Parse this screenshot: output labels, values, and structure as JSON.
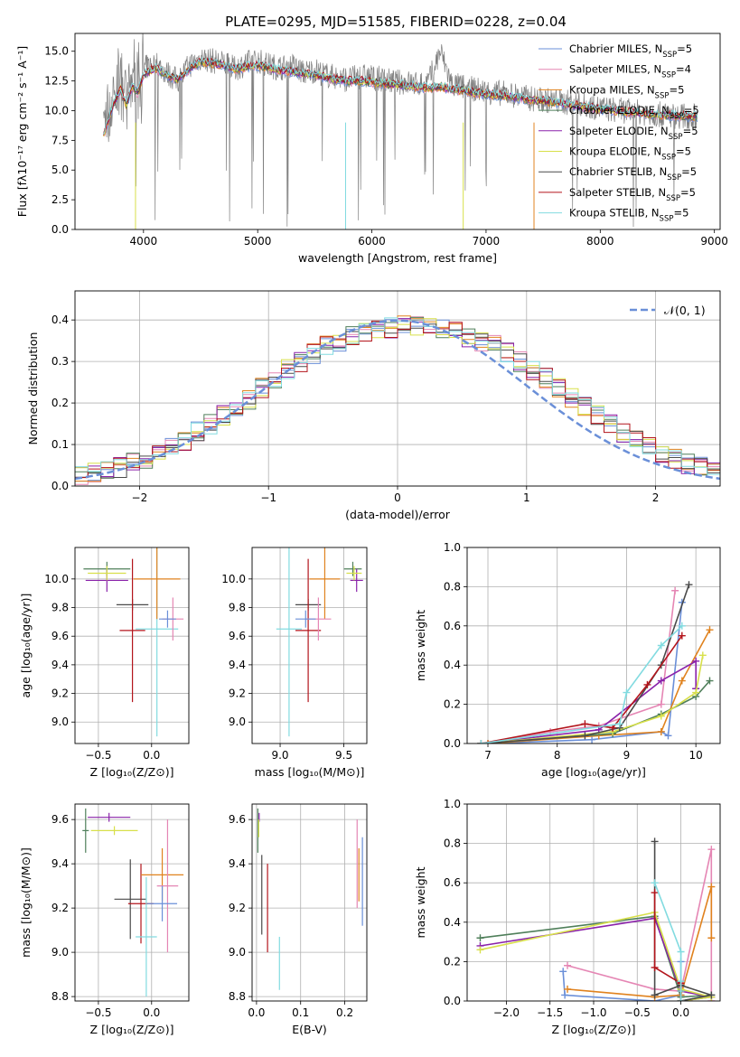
{
  "figure_title": "PLATE=0295, MJD=51585, FIBERID=0228, z=0.04",
  "palette": [
    "#6a8fd8",
    "#e586b4",
    "#e0821e",
    "#4f7f5a",
    "#8a22aa",
    "#d8e04a",
    "#4a4a4a",
    "#b3141b",
    "#82dbe0"
  ],
  "chart_data": [
    {
      "id": "spectrum",
      "type": "line",
      "title": "PLATE=0295, MJD=51585, FIBERID=0228, z=0.04",
      "xlabel": "wavelength [Angstrom, rest frame]",
      "ylabel": "Flux [fλ10⁻¹⁷ erg cm⁻² s⁻¹ A⁻¹]",
      "xlim": [
        3400,
        9050
      ],
      "ylim": [
        0,
        16.5
      ],
      "xticks": [
        4000,
        5000,
        6000,
        7000,
        8000,
        9000
      ],
      "yticks": [
        0.0,
        2.5,
        5.0,
        7.5,
        10.0,
        12.5,
        15.0
      ],
      "grid": false,
      "legend_position": "top-right",
      "observed_color": "#808080",
      "observed_x": [
        3650,
        3700,
        3750,
        3800,
        3850,
        3900,
        3950,
        4000,
        4100,
        4200,
        4300,
        4400,
        4500,
        4600,
        4700,
        4800,
        4900,
        5000,
        5100,
        5200,
        5300,
        5400,
        5500,
        5600,
        5700,
        5800,
        5900,
        6000,
        6100,
        6200,
        6300,
        6400,
        6500,
        6600,
        6700,
        6800,
        6900,
        7000,
        7200,
        7400,
        7600,
        7800,
        8000,
        8200,
        8400,
        8600,
        8800
      ],
      "observed_y": [
        8.5,
        10.0,
        11.5,
        12.5,
        10.0,
        13.0,
        12.0,
        13.5,
        14.0,
        13.2,
        12.5,
        13.8,
        14.4,
        14.2,
        14.0,
        13.5,
        14.0,
        14.2,
        13.8,
        13.6,
        13.8,
        13.2,
        13.4,
        13.0,
        12.8,
        12.6,
        12.9,
        12.8,
        12.6,
        12.4,
        12.4,
        12.2,
        12.5,
        15.0,
        12.2,
        12.0,
        11.8,
        11.6,
        11.4,
        11.0,
        10.8,
        10.6,
        10.2,
        10.0,
        9.8,
        9.6,
        9.5
      ],
      "model_x": [
        3650,
        3700,
        3750,
        3800,
        3850,
        3900,
        3950,
        4000,
        4100,
        4200,
        4300,
        4400,
        4500,
        4600,
        4700,
        4800,
        4900,
        5000,
        5100,
        5200,
        5300,
        5400,
        5500,
        5600,
        5700,
        5800,
        5900,
        6000,
        6100,
        6200,
        6300,
        6400,
        6500,
        6600,
        6700,
        6800,
        6900,
        7000,
        7200,
        7400,
        7600,
        7800,
        8000,
        8200,
        8400,
        8600,
        8800
      ],
      "model_y": [
        8.0,
        9.5,
        10.8,
        11.8,
        10.5,
        12.0,
        11.5,
        13.0,
        13.6,
        13.0,
        12.6,
        13.5,
        14.1,
        14.0,
        13.8,
        13.5,
        13.7,
        13.8,
        13.6,
        13.4,
        13.3,
        13.1,
        13.0,
        12.8,
        12.6,
        12.5,
        12.5,
        12.4,
        12.3,
        12.2,
        12.1,
        12.0,
        11.9,
        12.0,
        11.8,
        11.7,
        11.5,
        11.4,
        11.2,
        10.9,
        10.7,
        10.4,
        10.1,
        9.9,
        9.7,
        9.6,
        9.5
      ],
      "series": [
        {
          "name": "Chabrier MILES, N_SSP=5",
          "label_main": "Chabrier MILES, N",
          "label_sub": "SSP",
          "label_tail": "=5"
        },
        {
          "name": "Salpeter MILES, N_SSP=4",
          "label_main": "Salpeter MILES, N",
          "label_sub": "SSP",
          "label_tail": "=4"
        },
        {
          "name": "Kroupa MILES, N_SSP=5",
          "label_main": "Kroupa MILES, N",
          "label_sub": "SSP",
          "label_tail": "=5"
        },
        {
          "name": "Chabrier ELODIE, N_SSP=5",
          "label_main": "Chabrier ELODIE, N",
          "label_sub": "SSP",
          "label_tail": "=5"
        },
        {
          "name": "Salpeter ELODIE, N_SSP=5",
          "label_main": "Salpeter ELODIE, N",
          "label_sub": "SSP",
          "label_tail": "=5"
        },
        {
          "name": "Kroupa ELODIE, N_SSP=5",
          "label_main": "Kroupa ELODIE, N",
          "label_sub": "SSP",
          "label_tail": "=5"
        },
        {
          "name": "Chabrier STELIB, N_SSP=5",
          "label_main": "Chabrier STELIB, N",
          "label_sub": "SSP",
          "label_tail": "=5"
        },
        {
          "name": "Salpeter STELIB, N_SSP=5",
          "label_main": "Salpeter STELIB, N",
          "label_sub": "SSP",
          "label_tail": "=5"
        },
        {
          "name": "Kroupa STELIB, N_SSP=5",
          "label_main": "Kroupa STELIB, N",
          "label_sub": "SSP",
          "label_tail": "=5"
        }
      ]
    },
    {
      "id": "residuals",
      "type": "line",
      "xlabel": "(data-model)/error",
      "ylabel": "Normed distribution",
      "xlim": [
        -2.5,
        2.5
      ],
      "ylim": [
        0,
        0.47
      ],
      "xticks": [
        -2,
        -1,
        0,
        1,
        2
      ],
      "yticks": [
        0.0,
        0.1,
        0.2,
        0.3,
        0.4
      ],
      "grid": true,
      "legend_position": "top-right",
      "normal_curve_label": "𝒩(0, 1)",
      "normal_curve_color": "#6a8fd8",
      "bin_edges": [
        -2.5,
        -2.4,
        -2.3,
        -2.2,
        -2.1,
        -2.0,
        -1.9,
        -1.8,
        -1.7,
        -1.6,
        -1.5,
        -1.4,
        -1.3,
        -1.2,
        -1.1,
        -1.0,
        -0.9,
        -0.8,
        -0.7,
        -0.6,
        -0.5,
        -0.4,
        -0.3,
        -0.2,
        -0.1,
        0.0,
        0.1,
        0.2,
        0.3,
        0.4,
        0.5,
        0.6,
        0.7,
        0.8,
        0.9,
        1.0,
        1.1,
        1.2,
        1.3,
        1.4,
        1.5,
        1.6,
        1.7,
        1.8,
        1.9,
        2.0,
        2.1,
        2.2,
        2.3,
        2.4,
        2.5
      ],
      "hist_base": [
        0.025,
        0.03,
        0.04,
        0.045,
        0.055,
        0.065,
        0.08,
        0.095,
        0.11,
        0.13,
        0.15,
        0.17,
        0.19,
        0.21,
        0.235,
        0.26,
        0.28,
        0.3,
        0.32,
        0.34,
        0.35,
        0.36,
        0.37,
        0.375,
        0.38,
        0.385,
        0.385,
        0.38,
        0.375,
        0.37,
        0.36,
        0.35,
        0.34,
        0.32,
        0.3,
        0.28,
        0.26,
        0.235,
        0.21,
        0.19,
        0.17,
        0.15,
        0.13,
        0.11,
        0.095,
        0.08,
        0.065,
        0.055,
        0.045,
        0.035
      ]
    },
    {
      "id": "age_vs_Z",
      "type": "scatter",
      "xlabel": "Z [log₁₀(Z/Z⊙)]",
      "ylabel": "age  [log₁₀(age/yr)]",
      "xlim": [
        -0.72,
        0.35
      ],
      "ylim": [
        8.85,
        10.22
      ],
      "xticks": [
        -0.5,
        0.0
      ],
      "yticks": [
        9.0,
        9.2,
        9.4,
        9.6,
        9.8,
        10.0
      ],
      "grid": true,
      "points": [
        {
          "color": "#4f7f5a",
          "x": -0.42,
          "y": 10.07,
          "xerr": 0.22,
          "yerr": 0.05
        },
        {
          "color": "#8a22aa",
          "x": -0.42,
          "y": 9.99,
          "xerr": 0.2,
          "yerr": 0.08
        },
        {
          "color": "#d8e04a",
          "x": -0.42,
          "y": 10.04,
          "xerr": 0.18,
          "yerr": 0.05
        },
        {
          "color": "#4a4a4a",
          "x": -0.18,
          "y": 9.82,
          "xerr": 0.15,
          "yerr": 0.04
        },
        {
          "color": "#b3141b",
          "x": -0.18,
          "y": 9.64,
          "xerr": 0.12,
          "yerr": 0.5
        },
        {
          "color": "#82dbe0",
          "x": 0.05,
          "y": 9.65,
          "xerr": 0.2,
          "yerr": 0.75
        },
        {
          "color": "#e0821e",
          "x": 0.05,
          "y": 10.0,
          "xerr": 0.22,
          "yerr": 0.28
        },
        {
          "color": "#e586b4",
          "x": 0.2,
          "y": 9.72,
          "xerr": 0.1,
          "yerr": 0.15
        },
        {
          "color": "#6a8fd8",
          "x": 0.15,
          "y": 9.72,
          "xerr": 0.08,
          "yerr": 0.06
        }
      ]
    },
    {
      "id": "age_vs_mass",
      "type": "scatter",
      "xlabel": "mass [log₁₀(M/M⊙)]",
      "ylabel": "",
      "xlim": [
        8.78,
        9.68
      ],
      "ylim": [
        8.85,
        10.22
      ],
      "xticks": [
        9.0,
        9.5
      ],
      "yticks": [
        9.0,
        9.2,
        9.4,
        9.6,
        9.8,
        10.0
      ],
      "grid": true,
      "points": [
        {
          "color": "#4f7f5a",
          "x": 9.57,
          "y": 10.07,
          "xerr": 0.07,
          "yerr": 0.05
        },
        {
          "color": "#8a22aa",
          "x": 9.6,
          "y": 9.99,
          "xerr": 0.05,
          "yerr": 0.08
        },
        {
          "color": "#d8e04a",
          "x": 9.58,
          "y": 10.04,
          "xerr": 0.06,
          "yerr": 0.05
        },
        {
          "color": "#4a4a4a",
          "x": 9.22,
          "y": 9.82,
          "xerr": 0.1,
          "yerr": 0.04
        },
        {
          "color": "#b3141b",
          "x": 9.22,
          "y": 9.64,
          "xerr": 0.1,
          "yerr": 0.5
        },
        {
          "color": "#82dbe0",
          "x": 9.07,
          "y": 9.65,
          "xerr": 0.1,
          "yerr": 0.75
        },
        {
          "color": "#e0821e",
          "x": 9.35,
          "y": 10.0,
          "xerr": 0.12,
          "yerr": 0.28
        },
        {
          "color": "#e586b4",
          "x": 9.3,
          "y": 9.72,
          "xerr": 0.1,
          "yerr": 0.15
        },
        {
          "color": "#6a8fd8",
          "x": 9.2,
          "y": 9.72,
          "xerr": 0.08,
          "yerr": 0.06
        }
      ]
    },
    {
      "id": "weight_vs_age",
      "type": "line",
      "xlabel": "age  [log₁₀(age/yr)]",
      "ylabel": "mass weight",
      "xlim": [
        6.7,
        10.35
      ],
      "ylim": [
        0,
        1.0
      ],
      "xticks": [
        7,
        8,
        9,
        10
      ],
      "yticks": [
        0.0,
        0.2,
        0.4,
        0.6,
        0.8,
        1.0
      ],
      "grid": true,
      "series": [
        {
          "color": "#6a8fd8",
          "x": [
            7.0,
            8.5,
            9.5,
            9.6,
            9.8
          ],
          "y": [
            0.0,
            0.02,
            0.06,
            0.04,
            0.72
          ]
        },
        {
          "color": "#e586b4",
          "x": [
            7.0,
            7.9,
            8.6,
            9.5,
            9.7
          ],
          "y": [
            0.0,
            0.06,
            0.09,
            0.2,
            0.78
          ]
        },
        {
          "color": "#e0821e",
          "x": [
            7.0,
            8.6,
            9.5,
            9.8,
            10.2
          ],
          "y": [
            0.0,
            0.04,
            0.06,
            0.32,
            0.58
          ]
        },
        {
          "color": "#4f7f5a",
          "x": [
            6.9,
            8.8,
            9.5,
            10.0,
            10.2
          ],
          "y": [
            0.0,
            0.05,
            0.15,
            0.24,
            0.32
          ]
        },
        {
          "color": "#8a22aa",
          "x": [
            6.9,
            8.6,
            9.5,
            10.0,
            10.0
          ],
          "y": [
            0.0,
            0.07,
            0.32,
            0.42,
            0.28
          ]
        },
        {
          "color": "#d8e04a",
          "x": [
            6.9,
            8.8,
            9.5,
            10.0,
            10.1
          ],
          "y": [
            0.0,
            0.06,
            0.14,
            0.26,
            0.45
          ]
        },
        {
          "color": "#4a4a4a",
          "x": [
            6.9,
            8.4,
            8.9,
            9.5,
            9.9
          ],
          "y": [
            0.0,
            0.04,
            0.08,
            0.4,
            0.81
          ]
        },
        {
          "color": "#b3141b",
          "x": [
            6.9,
            8.4,
            8.8,
            9.3,
            9.8
          ],
          "y": [
            0.0,
            0.1,
            0.08,
            0.3,
            0.55
          ]
        },
        {
          "color": "#82dbe0",
          "x": [
            6.9,
            8.9,
            9.0,
            9.5,
            9.8
          ],
          "y": [
            0.0,
            0.1,
            0.26,
            0.5,
            0.6
          ]
        }
      ]
    },
    {
      "id": "mass_vs_Z",
      "type": "scatter",
      "xlabel": "Z [log₁₀(Z/Z⊙)]",
      "ylabel": "mass [log₁₀(M/M⊙)]",
      "xlim": [
        -0.72,
        0.35
      ],
      "ylim": [
        8.78,
        9.67
      ],
      "xticks": [
        -0.5,
        0.0
      ],
      "yticks": [
        8.8,
        9.0,
        9.2,
        9.4,
        9.6
      ],
      "grid": true,
      "points": [
        {
          "color": "#4f7f5a",
          "x": -0.62,
          "y": 9.55,
          "xerr": 0.03,
          "yerr": 0.1
        },
        {
          "color": "#8a22aa",
          "x": -0.4,
          "y": 9.61,
          "xerr": 0.2,
          "yerr": 0.02
        },
        {
          "color": "#d8e04a",
          "x": -0.35,
          "y": 9.55,
          "xerr": 0.22,
          "yerr": 0.02
        },
        {
          "color": "#4a4a4a",
          "x": -0.2,
          "y": 9.24,
          "xerr": 0.15,
          "yerr": 0.18
        },
        {
          "color": "#b3141b",
          "x": -0.1,
          "y": 9.22,
          "xerr": 0.12,
          "yerr": 0.18
        },
        {
          "color": "#82dbe0",
          "x": -0.05,
          "y": 9.07,
          "xerr": 0.1,
          "yerr": 0.27
        },
        {
          "color": "#e0821e",
          "x": 0.1,
          "y": 9.35,
          "xerr": 0.2,
          "yerr": 0.12
        },
        {
          "color": "#e586b4",
          "x": 0.15,
          "y": 9.3,
          "xerr": 0.1,
          "yerr": 0.3
        },
        {
          "color": "#6a8fd8",
          "x": 0.1,
          "y": 9.22,
          "xerr": 0.14,
          "yerr": 0.08
        }
      ]
    },
    {
      "id": "mass_vs_ebv",
      "type": "scatter",
      "xlabel": "E(B-V)",
      "ylabel": "",
      "xlim": [
        -0.01,
        0.25
      ],
      "ylim": [
        8.78,
        9.67
      ],
      "xticks": [
        0.0,
        0.1,
        0.2
      ],
      "yticks": [
        8.8,
        9.0,
        9.2,
        9.4,
        9.6
      ],
      "grid": true,
      "points": [
        {
          "color": "#4f7f5a",
          "x": 0.003,
          "y": 9.55,
          "yerr": 0.1
        },
        {
          "color": "#8a22aa",
          "x": 0.006,
          "y": 9.61,
          "yerr": 0.02
        },
        {
          "color": "#d8e04a",
          "x": 0.005,
          "y": 9.56,
          "yerr": 0.04
        },
        {
          "color": "#4a4a4a",
          "x": 0.012,
          "y": 9.26,
          "yerr": 0.18
        },
        {
          "color": "#b3141b",
          "x": 0.025,
          "y": 9.2,
          "yerr": 0.2
        },
        {
          "color": "#82dbe0",
          "x": 0.052,
          "y": 8.95,
          "yerr": 0.12
        },
        {
          "color": "#e0821e",
          "x": 0.232,
          "y": 9.35,
          "yerr": 0.12
        },
        {
          "color": "#e586b4",
          "x": 0.228,
          "y": 9.4,
          "yerr": 0.2
        },
        {
          "color": "#6a8fd8",
          "x": 0.24,
          "y": 9.32,
          "yerr": 0.2
        }
      ]
    },
    {
      "id": "weight_vs_Z",
      "type": "line",
      "xlabel": "Z [log₁₀(Z/Z⊙)]",
      "ylabel": "mass weight",
      "xlim": [
        -2.45,
        0.45
      ],
      "ylim": [
        0,
        1.0
      ],
      "xticks": [
        -2.0,
        -1.5,
        -1.0,
        -0.5,
        0.0
      ],
      "yticks": [
        0.0,
        0.2,
        0.4,
        0.6,
        0.8,
        1.0
      ],
      "grid": true,
      "series": [
        {
          "color": "#6a8fd8",
          "x": [
            -1.35,
            -1.33,
            -0.3,
            0.0,
            0.0
          ],
          "y": [
            0.15,
            0.03,
            0.0,
            0.03,
            0.2
          ]
        },
        {
          "color": "#e586b4",
          "x": [
            -1.3,
            -0.3,
            0.0,
            0.35,
            0.35
          ],
          "y": [
            0.18,
            0.06,
            0.05,
            0.77,
            0.0
          ]
        },
        {
          "color": "#e0821e",
          "x": [
            -1.3,
            -0.3,
            0.0,
            0.35,
            0.35
          ],
          "y": [
            0.06,
            0.02,
            0.03,
            0.58,
            0.32
          ]
        },
        {
          "color": "#4f7f5a",
          "x": [
            -2.3,
            -0.3,
            0.0,
            0.35,
            0.0
          ],
          "y": [
            0.32,
            0.43,
            0.02,
            0.03,
            0.0
          ]
        },
        {
          "color": "#8a22aa",
          "x": [
            -2.3,
            -0.3,
            0.0,
            0.35,
            0.0
          ],
          "y": [
            0.28,
            0.42,
            0.05,
            0.02,
            0.0
          ]
        },
        {
          "color": "#d8e04a",
          "x": [
            -2.3,
            -0.3,
            0.0,
            0.35,
            0.0
          ],
          "y": [
            0.26,
            0.45,
            0.06,
            0.02,
            0.0
          ]
        },
        {
          "color": "#4a4a4a",
          "x": [
            -0.3,
            -0.3,
            0.0,
            0.35,
            0.0
          ],
          "y": [
            0.81,
            0.03,
            0.08,
            0.03,
            0.0
          ]
        },
        {
          "color": "#b3141b",
          "x": [
            -0.3,
            -0.3,
            0.0,
            0.0,
            0.0
          ],
          "y": [
            0.55,
            0.17,
            0.09,
            0.05,
            0.0
          ]
        },
        {
          "color": "#82dbe0",
          "x": [
            -0.3,
            0.0,
            0.0,
            0.0,
            0.0
          ],
          "y": [
            0.6,
            0.25,
            0.1,
            0.05,
            0.0
          ]
        }
      ]
    }
  ]
}
